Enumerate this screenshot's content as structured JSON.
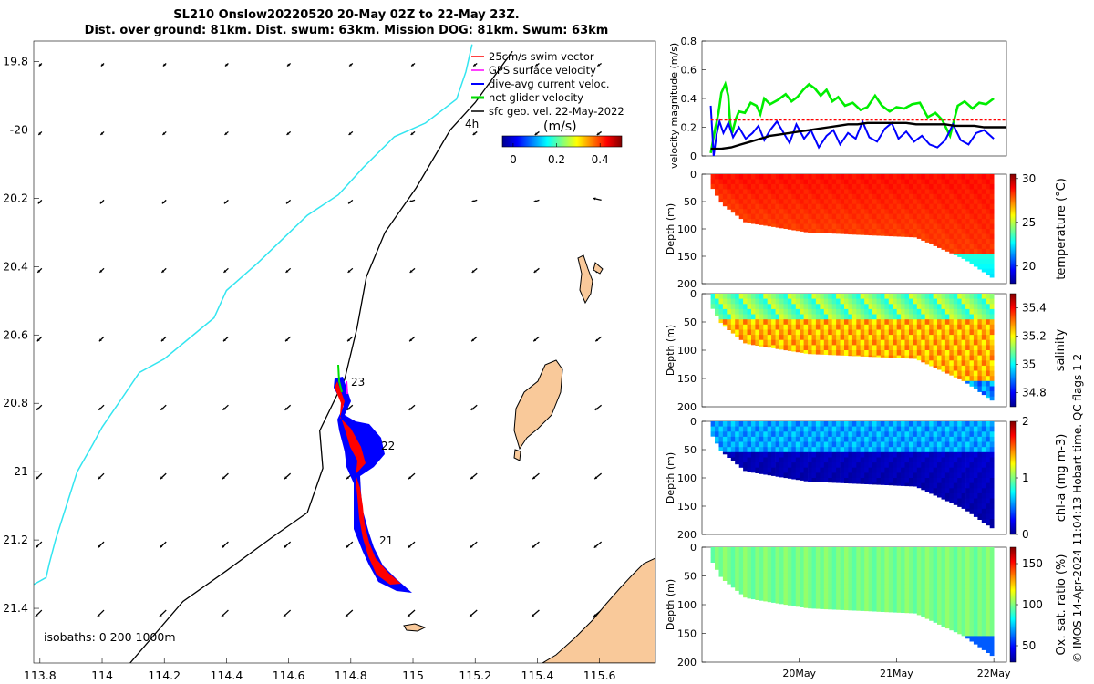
{
  "title": {
    "line1": "SL210 Onslow20220520 20-May 02Z to 22-May 23Z.",
    "line2": "Dist. over ground: 81km. Dist. swum: 63km. Mission DOG: 81km. Swum: 63km"
  },
  "map": {
    "legend": [
      {
        "label": "25cm/s swim vector",
        "color": "#ff0000"
      },
      {
        "label": "GPS surface velocity",
        "color": "#ff00ff"
      },
      {
        "label": "dive-avg current veloc.",
        "color": "#0000ff"
      },
      {
        "label": "net glider velocity",
        "color": "#00dd00"
      },
      {
        "label": "sfc geo. vel. 22-May-2022",
        "color": "#000000"
      }
    ],
    "legend_extra": "4h",
    "colorbar_unit": "(m/s)",
    "colorbar_ticks": [
      "0",
      "0.2",
      "0.4"
    ],
    "colorbar_range": [
      -0.05,
      0.5
    ],
    "isobaths_label": "isobaths: 0   200  1000m",
    "track_labels": [
      "23",
      "22",
      "21"
    ],
    "land_color": "#f9c99a"
  },
  "chart_data": [
    {
      "type": "scatter",
      "title": "map",
      "xlabel": "",
      "ylabel": "",
      "xlim": [
        113.78,
        115.78
      ],
      "ylim": [
        -21.56,
        -19.74
      ],
      "x_ticks": [
        113.8,
        114,
        114.2,
        114.4,
        114.6,
        114.8,
        115,
        115.2,
        115.4,
        115.6
      ],
      "x_tick_labels": [
        "113.8",
        "114",
        "114.2",
        "114.4",
        "114.6",
        "114.8",
        "115",
        "115.2",
        "115.4",
        "115.6"
      ],
      "y_ticks": [
        -19.8,
        -20,
        -20.2,
        -20.4,
        -20.6,
        -20.8,
        -21,
        -21.2,
        -21.4
      ],
      "y_tick_labels": [
        "19.8",
        "-20",
        "20.2",
        "20.4",
        "20.6",
        "20.8",
        "-21",
        "21.2",
        "21.4"
      ],
      "isobath_0": [
        [
          113.78,
          -21.33
        ],
        [
          113.82,
          -21.31
        ],
        [
          113.83,
          -21.27
        ],
        [
          113.85,
          -21.2
        ],
        [
          113.92,
          -21.0
        ],
        [
          113.97,
          -20.92
        ],
        [
          114.0,
          -20.87
        ],
        [
          114.06,
          -20.79
        ],
        [
          114.12,
          -20.71
        ],
        [
          114.2,
          -20.67
        ],
        [
          114.28,
          -20.61
        ],
        [
          114.36,
          -20.55
        ],
        [
          114.4,
          -20.47
        ],
        [
          114.5,
          -20.39
        ],
        [
          114.58,
          -20.32
        ],
        [
          114.66,
          -20.25
        ],
        [
          114.76,
          -20.19
        ],
        [
          114.84,
          -20.11
        ],
        [
          114.94,
          -20.02
        ],
        [
          115.04,
          -19.98
        ],
        [
          115.14,
          -19.91
        ],
        [
          115.17,
          -19.83
        ],
        [
          115.19,
          -19.75
        ]
      ],
      "isobath_200": [
        [
          114.09,
          -21.56
        ],
        [
          114.26,
          -21.38
        ],
        [
          114.4,
          -21.29
        ],
        [
          114.55,
          -21.19
        ],
        [
          114.66,
          -21.12
        ],
        [
          114.71,
          -20.99
        ],
        [
          114.7,
          -20.88
        ],
        [
          114.78,
          -20.73
        ],
        [
          114.82,
          -20.58
        ],
        [
          114.85,
          -20.43
        ],
        [
          114.91,
          -20.3
        ],
        [
          115.01,
          -20.17
        ],
        [
          115.12,
          -20.0
        ],
        [
          115.2,
          -19.92
        ],
        [
          115.32,
          -19.77
        ]
      ],
      "glider_track": [
        [
          114.74,
          -20.77
        ],
        [
          114.78,
          -20.78
        ],
        [
          114.78,
          -20.84
        ],
        [
          114.77,
          -20.87
        ],
        [
          114.8,
          -20.9
        ],
        [
          114.83,
          -20.94
        ],
        [
          114.82,
          -21.0
        ],
        [
          114.8,
          -21.07
        ],
        [
          114.82,
          -21.12
        ],
        [
          114.83,
          -21.19
        ],
        [
          114.85,
          -21.26
        ],
        [
          114.9,
          -21.32
        ],
        [
          114.96,
          -21.35
        ]
      ],
      "current_field_sample": [
        {
          "lat": -19.8,
          "u": -0.1,
          "v": -0.1
        },
        {
          "lat": -21.4,
          "u": -0.2,
          "v": -0.15
        }
      ]
    },
    {
      "type": "line",
      "title": "velocity",
      "xlabel": "",
      "ylabel": "velocity magnitude (m/s)",
      "ylim": [
        0,
        0.8
      ],
      "xlim": [
        0,
        3.13
      ],
      "y_ticks": [
        "0",
        "0.2",
        "0.4",
        "0.6",
        "0.8"
      ],
      "x_ticks": [
        1.0,
        2.0,
        3.0
      ],
      "x_tick_labels": [
        "20May",
        "21May",
        "22May"
      ],
      "series": [
        {
          "color": "#00ee00",
          "x": [
            0.09,
            0.13,
            0.17,
            0.2,
            0.24,
            0.27,
            0.29,
            0.31,
            0.35,
            0.38,
            0.44,
            0.5,
            0.56,
            0.6,
            0.64,
            0.7,
            0.78,
            0.86,
            0.92,
            0.98,
            1.04,
            1.1,
            1.16,
            1.22,
            1.28,
            1.34,
            1.4,
            1.47,
            1.55,
            1.63,
            1.7,
            1.78,
            1.85,
            1.93,
            2.0,
            2.08,
            2.16,
            2.24,
            2.32,
            2.4,
            2.47,
            2.55,
            2.63,
            2.7,
            2.78,
            2.85,
            2.92,
            3.0
          ],
          "values": [
            0.02,
            0.17,
            0.3,
            0.44,
            0.5,
            0.42,
            0.23,
            0.16,
            0.26,
            0.31,
            0.3,
            0.37,
            0.35,
            0.29,
            0.4,
            0.36,
            0.39,
            0.43,
            0.38,
            0.41,
            0.46,
            0.5,
            0.47,
            0.42,
            0.46,
            0.38,
            0.41,
            0.35,
            0.37,
            0.32,
            0.34,
            0.42,
            0.35,
            0.31,
            0.34,
            0.33,
            0.36,
            0.37,
            0.27,
            0.3,
            0.25,
            0.14,
            0.35,
            0.38,
            0.33,
            0.37,
            0.36,
            0.4
          ]
        },
        {
          "color": "#0000ff",
          "x": [
            0.09,
            0.12,
            0.15,
            0.18,
            0.22,
            0.27,
            0.32,
            0.38,
            0.45,
            0.52,
            0.58,
            0.64,
            0.7,
            0.77,
            0.84,
            0.9,
            0.97,
            1.05,
            1.12,
            1.2,
            1.28,
            1.35,
            1.42,
            1.5,
            1.58,
            1.65,
            1.72,
            1.8,
            1.88,
            1.95,
            2.02,
            2.1,
            2.18,
            2.26,
            2.34,
            2.42,
            2.5,
            2.58,
            2.66,
            2.74,
            2.82,
            2.9,
            3.0
          ],
          "values": [
            0.35,
            0.0,
            0.15,
            0.24,
            0.16,
            0.23,
            0.13,
            0.2,
            0.12,
            0.16,
            0.21,
            0.11,
            0.18,
            0.24,
            0.16,
            0.09,
            0.22,
            0.12,
            0.18,
            0.06,
            0.14,
            0.18,
            0.08,
            0.16,
            0.12,
            0.24,
            0.13,
            0.1,
            0.19,
            0.23,
            0.12,
            0.17,
            0.1,
            0.14,
            0.08,
            0.06,
            0.11,
            0.22,
            0.11,
            0.08,
            0.16,
            0.18,
            0.12
          ]
        },
        {
          "color": "#000000",
          "x": [
            0.09,
            0.2,
            0.3,
            0.4,
            0.5,
            0.6,
            0.7,
            0.8,
            0.9,
            1.0,
            1.1,
            1.2,
            1.3,
            1.4,
            1.5,
            1.6,
            1.7,
            1.8,
            1.9,
            2.0,
            2.1,
            2.2,
            2.3,
            2.4,
            2.5,
            2.6,
            2.7,
            2.8,
            2.9,
            3.0,
            3.13
          ],
          "values": [
            0.05,
            0.05,
            0.06,
            0.08,
            0.1,
            0.12,
            0.14,
            0.15,
            0.16,
            0.17,
            0.18,
            0.19,
            0.2,
            0.21,
            0.22,
            0.22,
            0.23,
            0.23,
            0.23,
            0.23,
            0.23,
            0.22,
            0.22,
            0.22,
            0.22,
            0.21,
            0.21,
            0.21,
            0.2,
            0.2,
            0.2
          ]
        },
        {
          "color": "#ff0000",
          "x": [
            0.09,
            3.13
          ],
          "values": [
            0.25,
            0.25
          ]
        }
      ]
    },
    {
      "type": "heatmap",
      "title": "temperature",
      "ylabel": "Depth (m)",
      "colorbar_label": "temperature (°C)",
      "colorbar_ticks": [
        "20",
        "25",
        "30"
      ],
      "clim": [
        18,
        30.5
      ],
      "ylim": [
        200,
        0
      ],
      "y_ticks": [
        "0",
        "50",
        "100",
        "150",
        "200"
      ],
      "dominant_value": 28.5,
      "deep_value": 22
    },
    {
      "type": "heatmap",
      "title": "salinity",
      "ylabel": "Depth (m)",
      "colorbar_label": "salinity",
      "colorbar_ticks": [
        "34.8",
        "35",
        "35.2",
        "35.4"
      ],
      "clim": [
        34.7,
        35.5
      ],
      "ylim": [
        200,
        0
      ],
      "y_ticks": [
        "0",
        "50",
        "100",
        "150",
        "200"
      ],
      "surface_value": 35.1,
      "deep_value": 35.25
    },
    {
      "type": "heatmap",
      "title": "chl-a",
      "ylabel": "Depth (m)",
      "colorbar_label": "chl-a (mg m-3)",
      "colorbar_ticks": [
        "0",
        "1",
        "2"
      ],
      "clim": [
        0,
        2
      ],
      "ylim": [
        200,
        0
      ],
      "y_ticks": [
        "0",
        "50",
        "100",
        "150",
        "200"
      ],
      "surface_value": 0.6,
      "deep_value": 0.1
    },
    {
      "type": "heatmap",
      "title": "oxygen",
      "ylabel": "Depth (m)",
      "colorbar_label": "Ox. sat. ratio (%)",
      "colorbar_ticks": [
        "50",
        "100",
        "150"
      ],
      "clim": [
        30,
        170
      ],
      "ylim": [
        200,
        0
      ],
      "y_ticks": [
        "0",
        "50",
        "100",
        "150",
        "200"
      ],
      "dominant_value": 95,
      "deep_value": 60
    }
  ],
  "time_axis": {
    "labels": [
      "20May",
      "21May",
      "22May"
    ]
  },
  "side_note": "© IMOS 14-Apr-2024 11:04:13 Hobart time. QC flags 1  2"
}
